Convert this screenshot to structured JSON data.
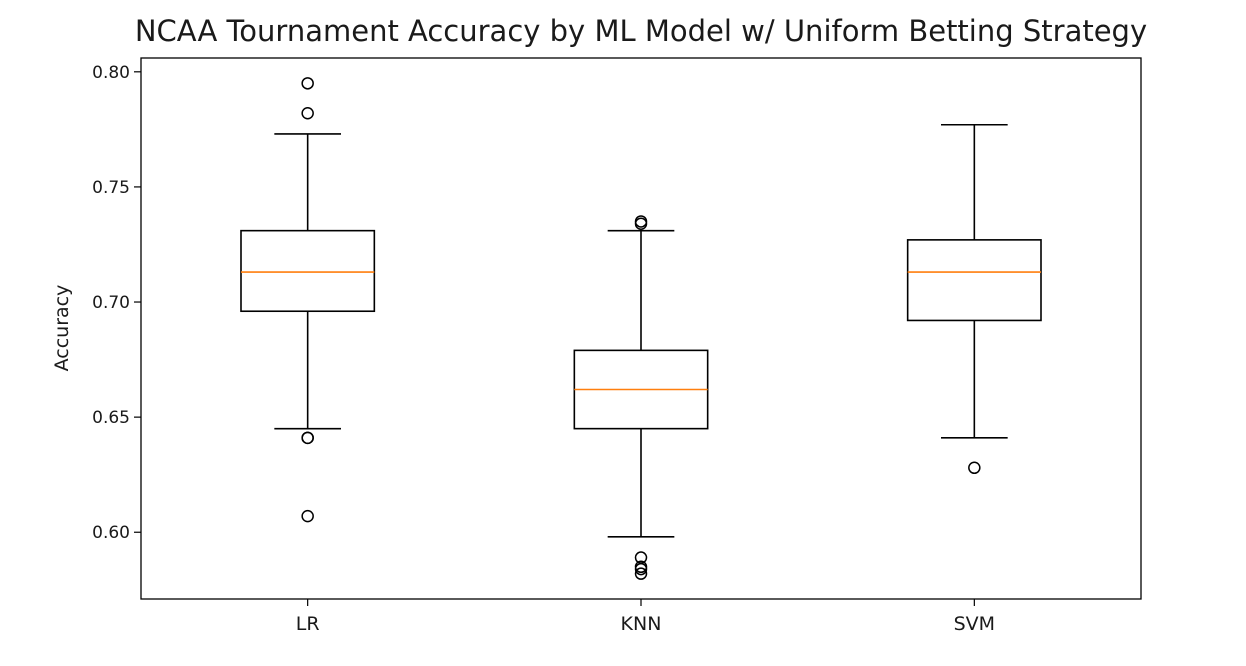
{
  "chart_data": {
    "type": "boxplot",
    "title": "NCAA Tournament Accuracy by ML Model w/ Uniform Betting Strategy",
    "xlabel": "",
    "ylabel": "Accuracy",
    "categories": [
      "LR",
      "KNN",
      "SVM"
    ],
    "ylim": [
      0.571,
      0.806
    ],
    "yticks": [
      0.6,
      0.65,
      0.7,
      0.75,
      0.8
    ],
    "ytick_labels": [
      "0.60",
      "0.65",
      "0.70",
      "0.75",
      "0.80"
    ],
    "grid": false,
    "boxes": [
      {
        "name": "LR",
        "whisker_low": 0.645,
        "q1": 0.696,
        "median": 0.713,
        "q3": 0.731,
        "whisker_high": 0.773,
        "outliers": [
          0.795,
          0.782,
          0.641,
          0.641,
          0.607
        ]
      },
      {
        "name": "KNN",
        "whisker_low": 0.598,
        "q1": 0.645,
        "median": 0.662,
        "q3": 0.679,
        "whisker_high": 0.731,
        "outliers": [
          0.735,
          0.734,
          0.589,
          0.585,
          0.584,
          0.582
        ]
      },
      {
        "name": "SVM",
        "whisker_low": 0.641,
        "q1": 0.692,
        "median": 0.713,
        "q3": 0.727,
        "whisker_high": 0.777,
        "outliers": [
          0.628
        ]
      }
    ],
    "colors": {
      "box": "#000000",
      "median": "#ff7f0e",
      "outlier": "#000000"
    }
  }
}
